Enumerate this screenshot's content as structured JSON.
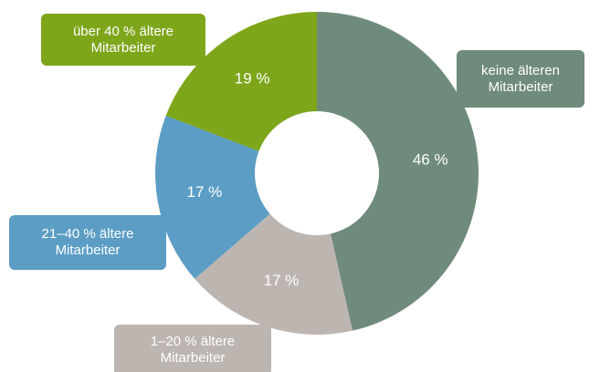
{
  "chart_data": {
    "type": "donut",
    "categories": [
      "keine älteren Mitarbeiter",
      "1–20 % ältere Mitarbeiter",
      "21–40 % ältere Mitarbeiter",
      "über 40 % ältere Mitarbeiter"
    ],
    "values": [
      46,
      17,
      17,
      19
    ],
    "value_labels": [
      "46 %",
      "17 %",
      "17 %",
      "19 %"
    ],
    "colors": [
      "#6f8b7b",
      "#bdb6b0",
      "#5b9dc4",
      "#7ea61a"
    ]
  }
}
